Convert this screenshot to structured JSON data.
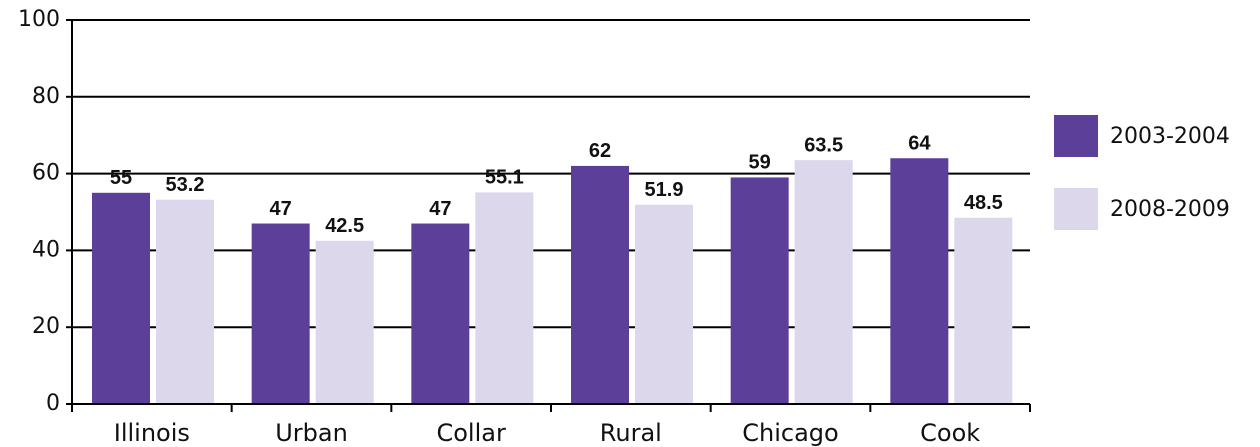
{
  "chart_data": {
    "type": "bar",
    "categories": [
      "Illinois",
      "Urban",
      "Collar",
      "Rural",
      "Chicago",
      "Cook"
    ],
    "series": [
      {
        "name": "2003-2004",
        "color": "#5b3f99",
        "values": [
          55,
          47,
          47,
          62,
          59,
          64
        ]
      },
      {
        "name": "2008-2009",
        "color": "#dcd7eb",
        "values": [
          53.2,
          42.5,
          55.1,
          51.9,
          63.5,
          48.5
        ]
      }
    ],
    "ylim": [
      0,
      100
    ],
    "yticks": [
      0,
      20,
      40,
      60,
      80,
      100
    ],
    "grid": true,
    "legend": "right"
  }
}
